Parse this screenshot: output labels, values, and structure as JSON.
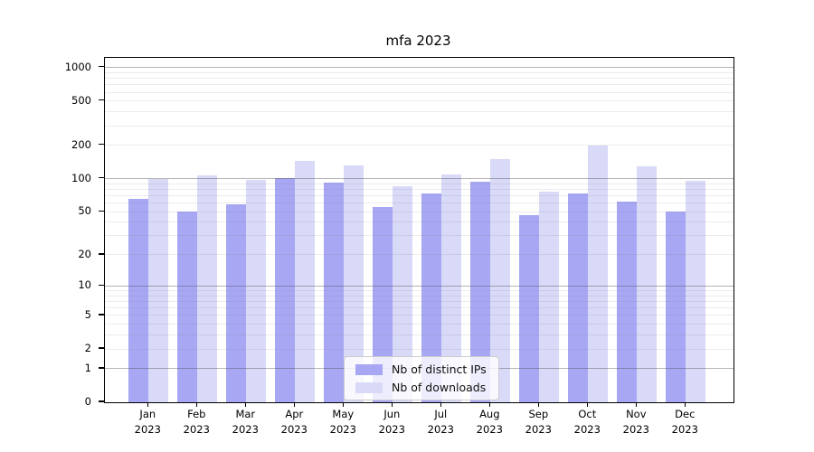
{
  "chart_data": {
    "type": "bar",
    "title": "mfa 2023",
    "yscale": "log1p",
    "ylim": [
      0,
      1234
    ],
    "y_ticks": [
      0,
      1,
      2,
      5,
      10,
      20,
      50,
      100,
      200,
      500,
      1000
    ],
    "y_minor_ticks": [
      2,
      3,
      4,
      5,
      6,
      7,
      8,
      9,
      20,
      30,
      40,
      50,
      60,
      70,
      80,
      90,
      200,
      300,
      400,
      500,
      600,
      700,
      800,
      900
    ],
    "categories": [
      "Jan 2023",
      "Feb 2023",
      "Mar 2023",
      "Apr 2023",
      "May 2023",
      "Jun 2023",
      "Jul 2023",
      "Aug 2023",
      "Sep 2023",
      "Oct 2023",
      "Nov 2023",
      "Dec 2023"
    ],
    "series": [
      {
        "name": "Nb of distinct IPs",
        "color": "#a7a7f4",
        "values": [
          65,
          50,
          58,
          101,
          92,
          55,
          73,
          94,
          47,
          73,
          62,
          50
        ]
      },
      {
        "name": "Nb of downloads",
        "color": "#d9d9f8",
        "values": [
          100,
          108,
          98,
          145,
          132,
          85,
          110,
          150,
          76,
          200,
          130,
          96
        ]
      }
    ],
    "legend_position": "lower center",
    "grid": true,
    "colors": {
      "spine": "#000000",
      "grid_major": "#b0b0b0",
      "grid_minor": "#ebebeb",
      "legend_border": "#cccccc",
      "legend_bg": "rgba(255,255,255,0.8)"
    }
  }
}
